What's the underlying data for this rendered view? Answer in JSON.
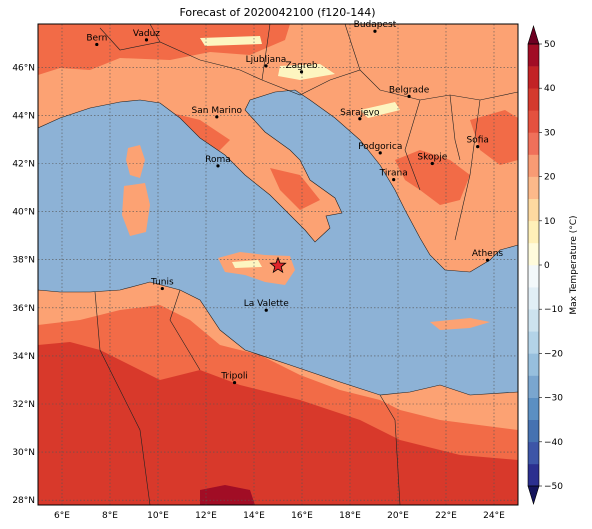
{
  "title": "Forecast of 2020042100 (f120-144)",
  "map": {
    "lon_ticks": [
      "6°E",
      "8°E",
      "10°E",
      "12°E",
      "14°E",
      "16°E",
      "18°E",
      "20°E",
      "22°E",
      "24°E"
    ],
    "lat_ticks": [
      "46°N",
      "44°N",
      "42°N",
      "40°N",
      "38°N",
      "36°N",
      "34°N",
      "32°N",
      "30°N",
      "28°N"
    ],
    "grid": true,
    "marker": {
      "name": "star",
      "color": "#e0242a",
      "lon": 15.0,
      "lat": 37.75
    }
  },
  "cities": [
    {
      "name": "Bern",
      "lon": 7.45,
      "lat": 46.95
    },
    {
      "name": "Vaduz",
      "lon": 9.52,
      "lat": 47.14
    },
    {
      "name": "Budapest",
      "lon": 19.04,
      "lat": 47.5
    },
    {
      "name": "Ljubljana",
      "lon": 14.5,
      "lat": 46.06
    },
    {
      "name": "Zagreb",
      "lon": 15.98,
      "lat": 45.81
    },
    {
      "name": "San Marino",
      "lon": 12.45,
      "lat": 43.94
    },
    {
      "name": "Belgrade",
      "lon": 20.46,
      "lat": 44.79
    },
    {
      "name": "Sarajevo",
      "lon": 18.41,
      "lat": 43.86
    },
    {
      "name": "Sofia",
      "lon": 23.32,
      "lat": 42.7
    },
    {
      "name": "Podgorica",
      "lon": 19.26,
      "lat": 42.44
    },
    {
      "name": "Skopje",
      "lon": 21.43,
      "lat": 42.0
    },
    {
      "name": "Roma",
      "lon": 12.5,
      "lat": 41.9
    },
    {
      "name": "Tirana",
      "lon": 19.82,
      "lat": 41.33
    },
    {
      "name": "Athens",
      "lon": 23.73,
      "lat": 37.98
    },
    {
      "name": "Tunis",
      "lon": 10.18,
      "lat": 36.8
    },
    {
      "name": "La Valette",
      "lon": 14.51,
      "lat": 35.9
    },
    {
      "name": "Tripoli",
      "lon": 13.19,
      "lat": 32.89
    }
  ],
  "colorbar": {
    "label": "Max Temperature (°C)",
    "tick_labels": [
      "50",
      "40",
      "30",
      "20",
      "10",
      "0",
      "−10",
      "−20",
      "−30",
      "−40",
      "−50"
    ],
    "levels": [
      -50,
      -45,
      -40,
      -35,
      -30,
      -25,
      -20,
      -15,
      -10,
      -5,
      0,
      5,
      10,
      15,
      20,
      25,
      30,
      35,
      40,
      45,
      50
    ],
    "colors": [
      "#2b2f8f",
      "#3d55a7",
      "#4672b1",
      "#5b8fc2",
      "#7aa6cf",
      "#97bfdd",
      "#b3d3e8",
      "#cde3ef",
      "#e1eef5",
      "#f3f8fa",
      "#fffbdc",
      "#fff0b8",
      "#fdd9a0",
      "#fcb98a",
      "#f89b74",
      "#f0705a",
      "#e4513f",
      "#d43a2e",
      "#c22326",
      "#a10d25"
    ],
    "extend": "both"
  },
  "palette": {
    "sea": "#8db2d6",
    "land_warm": "#fca273",
    "land_hot": "#f26b47",
    "desert": "#d8392b",
    "desert_hot": "#a10d25",
    "mountain": "#fdf5c0"
  }
}
